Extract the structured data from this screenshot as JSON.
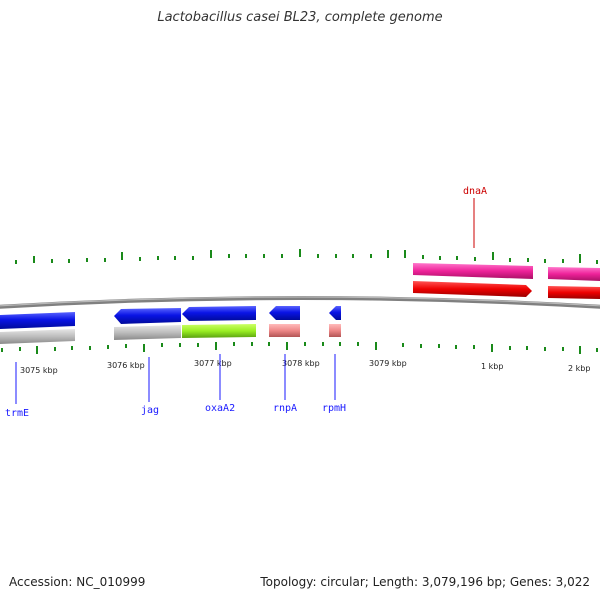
{
  "title": "Lactobacillus casei BL23, complete genome",
  "accession": "Accession: NC_010999",
  "summary": "Topology: circular; Length: 3,079,196 bp; Genes: 3,022",
  "scale_labels": [
    "3075 kbp",
    "3076 kbp",
    "3077 kbp",
    "3078 kbp",
    "3079 kbp",
    "1 kbp",
    "2 kbp"
  ],
  "genes": [
    {
      "name": "trmE",
      "color": "#1a1aff"
    },
    {
      "name": "jag",
      "color": "#1a1aff"
    },
    {
      "name": "oxaA2",
      "color": "#1a1aff"
    },
    {
      "name": "rnpA",
      "color": "#1a1aff"
    },
    {
      "name": "rpmH",
      "color": "#1a1aff"
    },
    {
      "name": "dnaA",
      "color": "#cc0000"
    }
  ],
  "colors": {
    "cds_blue": "#0a14e6",
    "rna_grey": "#b3b3b3",
    "green": "#99ee22",
    "pink": "#ee8888",
    "magenta": "#ee2299",
    "red": "#ee0000",
    "ticks": "#1a8a1a",
    "backbone": "#808080"
  }
}
